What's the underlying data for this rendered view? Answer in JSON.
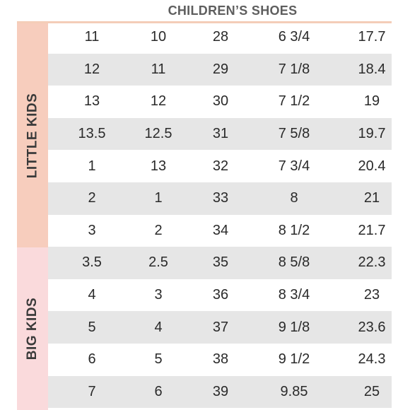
{
  "title": "CHILDREN’S SHOES",
  "sections": [
    {
      "label": "LITTLE KIDS"
    },
    {
      "label": "BIG KIDS"
    }
  ],
  "colors": {
    "little_kids_band": "#f7cdbd",
    "big_kids_band": "#fadadc",
    "row_shade": "#e6e6e6",
    "title_underline": "#f4cdb8"
  },
  "rows": [
    {
      "cells": [
        "11",
        "10",
        "28",
        "6 3/4",
        "17.7"
      ]
    },
    {
      "cells": [
        "12",
        "11",
        "29",
        "7 1/8",
        "18.4"
      ]
    },
    {
      "cells": [
        "13",
        "12",
        "30",
        "7 1/2",
        "19"
      ]
    },
    {
      "cells": [
        "13.5",
        "12.5",
        "31",
        "7 5/8",
        "19.7"
      ]
    },
    {
      "cells": [
        "1",
        "13",
        "32",
        "7 3/4",
        "20.4"
      ]
    },
    {
      "cells": [
        "2",
        "1",
        "33",
        "8",
        "21"
      ]
    },
    {
      "cells": [
        "3",
        "2",
        "34",
        "8 1/2",
        "21.7"
      ]
    },
    {
      "cells": [
        "3.5",
        "2.5",
        "35",
        "8 5/8",
        "22.3"
      ]
    },
    {
      "cells": [
        "4",
        "3",
        "36",
        "8 3/4",
        "23"
      ]
    },
    {
      "cells": [
        "5",
        "4",
        "37",
        "9 1/8",
        "23.6"
      ]
    },
    {
      "cells": [
        "6",
        "5",
        "38",
        "9 1/2",
        "24.3"
      ]
    },
    {
      "cells": [
        "7",
        "6",
        "39",
        "9.85",
        "25"
      ]
    }
  ]
}
